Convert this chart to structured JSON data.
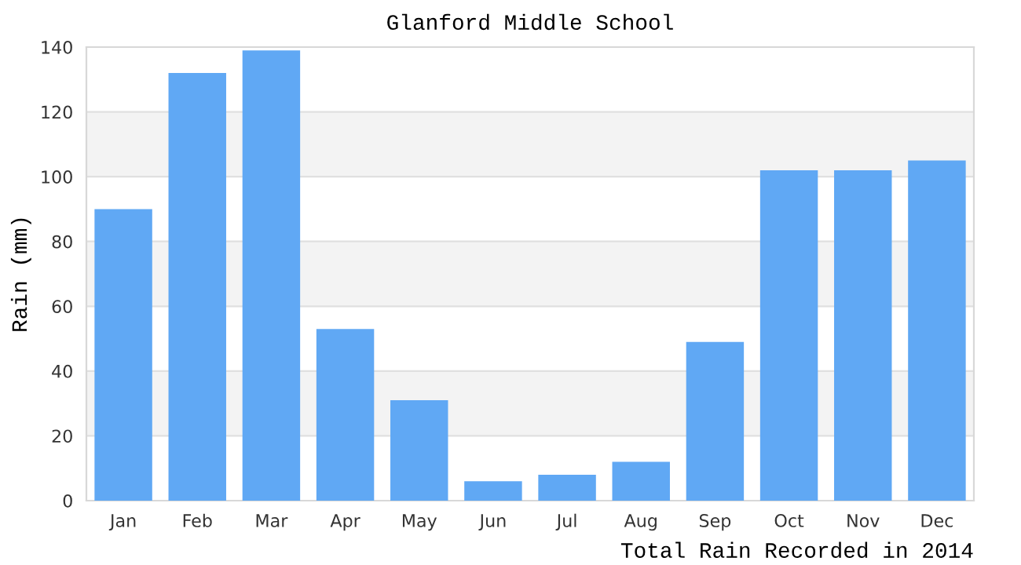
{
  "chart_data": {
    "type": "bar",
    "title": "Glanford Middle School",
    "ylabel": "Rain (mm)",
    "categories": [
      "Jan",
      "Feb",
      "Mar",
      "Apr",
      "May",
      "Jun",
      "Jul",
      "Aug",
      "Sep",
      "Oct",
      "Nov",
      "Dec"
    ],
    "values": [
      90,
      132,
      139,
      53,
      31,
      6,
      8,
      12,
      49,
      102,
      102,
      105
    ],
    "color": "#60a8f4",
    "ylim": [
      0,
      140
    ],
    "yticks": [
      0,
      20,
      40,
      60,
      80,
      100,
      120,
      140
    ],
    "grid": "y",
    "bands": [
      {
        "axis": "y",
        "from": 20,
        "to": 40,
        "color": "#f3f3f3"
      },
      {
        "axis": "y",
        "from": 60,
        "to": 80,
        "color": "#f3f3f3"
      },
      {
        "axis": "y",
        "from": 100,
        "to": 120,
        "color": "#f3f3f3"
      }
    ],
    "annotations": [
      "Total Rain Recorded in 2014"
    ]
  }
}
